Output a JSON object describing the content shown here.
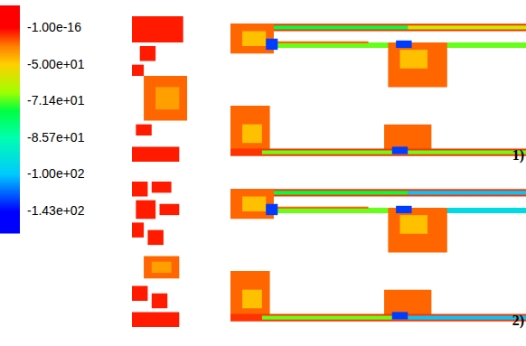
{
  "chart_data": {
    "type": "heatmap",
    "tick_labels": false,
    "xlim": [
      0,
      100
    ],
    "ylim": [
      0,
      40
    ],
    "colorbar": {
      "range": [
        -143,
        -1e-16
      ],
      "ticks": [
        {
          "value": -1e-16,
          "label": "-1.00e-16"
        },
        {
          "value": -50,
          "label": "-5.00e+01"
        },
        {
          "value": -71.4,
          "label": "-7.14e+01"
        },
        {
          "value": -85.7,
          "label": "-8.57e+01"
        },
        {
          "value": -100,
          "label": "-1.00e+02"
        },
        {
          "value": -143,
          "label": "-1.43e+02"
        }
      ]
    },
    "panels": [
      {
        "label": "1)",
        "cells": [
          [
            0,
            13,
            33,
            40,
            -5
          ],
          [
            2,
            6,
            28,
            32,
            -5
          ],
          [
            0,
            3,
            24,
            27,
            -5
          ],
          [
            3,
            14,
            12,
            24,
            -20
          ],
          [
            6,
            12,
            15,
            21,
            -35
          ],
          [
            1,
            5,
            8,
            11,
            -5
          ],
          [
            0,
            12,
            1,
            5,
            -5
          ],
          [
            25,
            100,
            36,
            38,
            -10
          ],
          [
            33,
            70,
            36.5,
            37.5,
            -75
          ],
          [
            70,
            100,
            36.5,
            37.5,
            -60
          ],
          [
            36,
            100,
            31.5,
            33,
            -70
          ],
          [
            36,
            60,
            32.7,
            33.3,
            -20
          ],
          [
            25,
            36,
            30,
            38,
            -20
          ],
          [
            28,
            34,
            32,
            36,
            -45
          ],
          [
            34,
            37,
            31,
            34,
            -130
          ],
          [
            65,
            80,
            21,
            33,
            -20
          ],
          [
            68,
            75,
            26,
            31,
            -45
          ],
          [
            67,
            71,
            31.5,
            33.5,
            -130
          ],
          [
            25,
            35,
            4,
            16,
            -20
          ],
          [
            28,
            33,
            6,
            11,
            -45
          ],
          [
            64,
            76,
            4,
            11,
            -20
          ],
          [
            25,
            100,
            2.5,
            4.5,
            -10
          ],
          [
            33,
            100,
            3,
            4,
            -70
          ],
          [
            66,
            70,
            3,
            5,
            -130
          ]
        ]
      },
      {
        "label": "2)",
        "cells": [
          [
            0,
            4,
            36,
            40,
            -5
          ],
          [
            5,
            10,
            37,
            40,
            -5
          ],
          [
            1,
            6,
            30,
            35,
            -5
          ],
          [
            7,
            12,
            31,
            34,
            -5
          ],
          [
            0,
            3,
            25,
            29,
            -5
          ],
          [
            4,
            8,
            23,
            27,
            -5
          ],
          [
            3,
            12,
            14,
            20,
            -20
          ],
          [
            5,
            10,
            15.5,
            18.5,
            -35
          ],
          [
            0,
            4,
            8,
            12,
            -5
          ],
          [
            5,
            9,
            6,
            10,
            -5
          ],
          [
            0,
            12,
            1,
            5,
            -5
          ],
          [
            25,
            100,
            36,
            38,
            -10
          ],
          [
            33,
            70,
            36.5,
            37.5,
            -75
          ],
          [
            70,
            100,
            36.5,
            37.5,
            -100
          ],
          [
            36,
            100,
            31.5,
            33,
            -70
          ],
          [
            70,
            100,
            31.5,
            33,
            -95
          ],
          [
            36,
            60,
            32.7,
            33.3,
            -20
          ],
          [
            25,
            36,
            30,
            38,
            -20
          ],
          [
            28,
            34,
            32,
            36,
            -45
          ],
          [
            34,
            37,
            31,
            34,
            -130
          ],
          [
            65,
            80,
            21,
            33,
            -20
          ],
          [
            68,
            75,
            26,
            31,
            -45
          ],
          [
            67,
            71,
            31.5,
            33.5,
            -130
          ],
          [
            25,
            35,
            4,
            16,
            -20
          ],
          [
            28,
            33,
            6,
            11,
            -45
          ],
          [
            64,
            76,
            4,
            11,
            -20
          ],
          [
            25,
            100,
            2.5,
            4.5,
            -10
          ],
          [
            33,
            70,
            3,
            4,
            -70
          ],
          [
            70,
            100,
            3,
            4,
            -100
          ],
          [
            66,
            70,
            3,
            5,
            -130
          ]
        ]
      }
    ]
  }
}
